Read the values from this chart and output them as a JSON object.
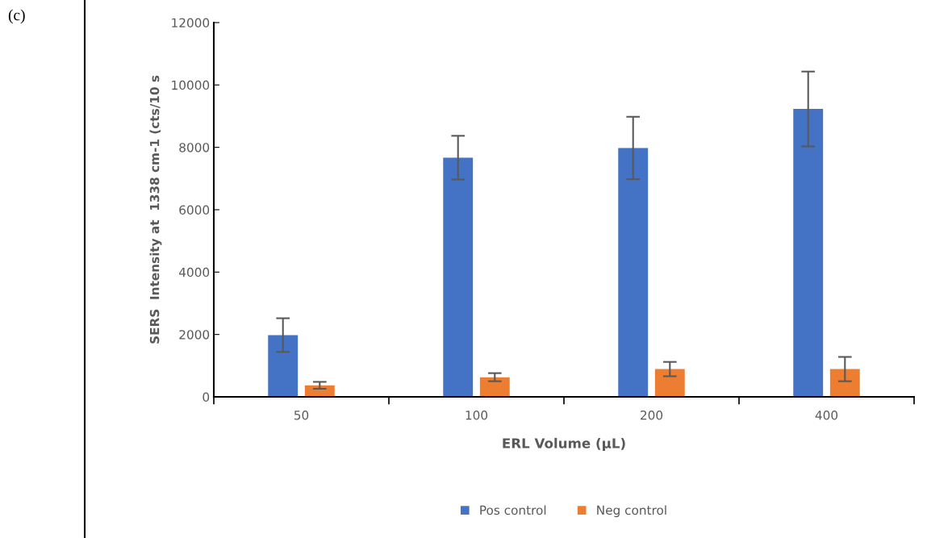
{
  "chart_data": {
    "type": "bar",
    "xlabel": "ERL Volume (µL)",
    "ylabel": "SERS  Intensity at  1338 cm-1 (cts/10 s",
    "categories": [
      "50",
      "100",
      "200",
      "400"
    ],
    "series": [
      {
        "name": "Pos control",
        "color": "#4472c4",
        "values": [
          1980,
          7670,
          7980,
          9230
        ],
        "errors": [
          540,
          700,
          1000,
          1200
        ]
      },
      {
        "name": "Neg control",
        "color": "#ed7d31",
        "values": [
          370,
          630,
          890,
          890
        ],
        "errors": [
          110,
          130,
          230,
          390
        ]
      }
    ],
    "ylim": [
      0,
      12000
    ],
    "yticks": [
      0,
      2000,
      4000,
      6000,
      8000,
      10000,
      12000
    ],
    "grid": false,
    "legend": "bottom",
    "annotations": [
      "(c)"
    ]
  }
}
